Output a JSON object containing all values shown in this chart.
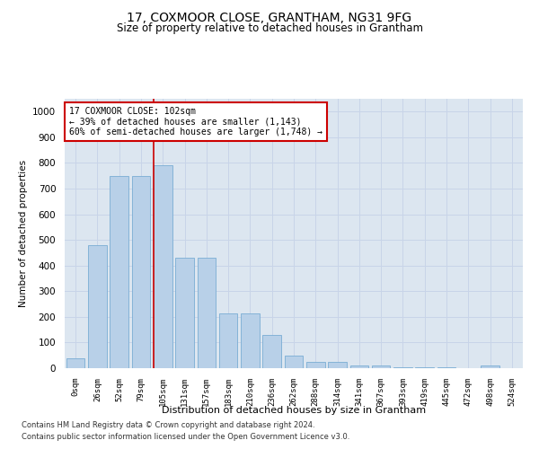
{
  "title": "17, COXMOOR CLOSE, GRANTHAM, NG31 9FG",
  "subtitle": "Size of property relative to detached houses in Grantham",
  "xlabel": "Distribution of detached houses by size in Grantham",
  "ylabel": "Number of detached properties",
  "categories": [
    "0sqm",
    "26sqm",
    "52sqm",
    "79sqm",
    "105sqm",
    "131sqm",
    "157sqm",
    "183sqm",
    "210sqm",
    "236sqm",
    "262sqm",
    "288sqm",
    "314sqm",
    "341sqm",
    "367sqm",
    "393sqm",
    "419sqm",
    "445sqm",
    "472sqm",
    "498sqm",
    "524sqm"
  ],
  "values": [
    40,
    480,
    750,
    750,
    790,
    430,
    430,
    215,
    215,
    130,
    50,
    25,
    25,
    12,
    10,
    5,
    5,
    5,
    0,
    10,
    0
  ],
  "bar_color": "#b8d0e8",
  "bar_edge_color": "#7aadd4",
  "vline_color": "#cc0000",
  "vline_index": 3.575,
  "annotation_box_text": "17 COXMOOR CLOSE: 102sqm\n← 39% of detached houses are smaller (1,143)\n60% of semi-detached houses are larger (1,748) →",
  "annotation_box_color": "#cc0000",
  "annotation_box_bg": "#ffffff",
  "ylim": [
    0,
    1050
  ],
  "yticks": [
    0,
    100,
    200,
    300,
    400,
    500,
    600,
    700,
    800,
    900,
    1000
  ],
  "grid_color": "#c8d4e8",
  "bg_color": "#dce6f0",
  "footer_line1": "Contains HM Land Registry data © Crown copyright and database right 2024.",
  "footer_line2": "Contains public sector information licensed under the Open Government Licence v3.0."
}
